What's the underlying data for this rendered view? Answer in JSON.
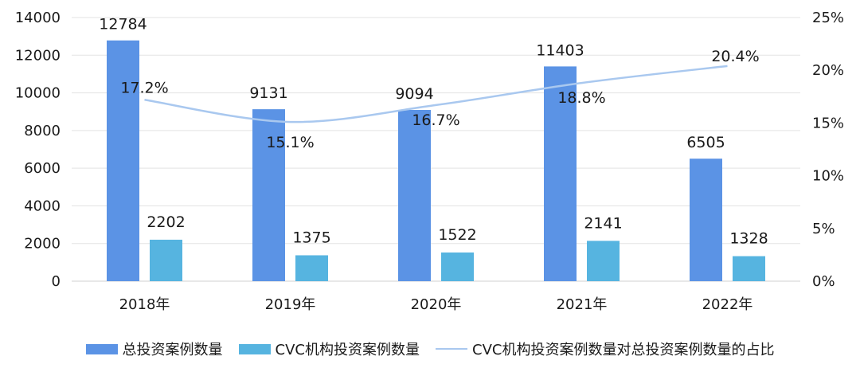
{
  "chart_data": {
    "type": "bar",
    "categories": [
      "2018年",
      "2019年",
      "2020年",
      "2021年",
      "2022年"
    ],
    "series": [
      {
        "name": "总投资案例数量",
        "type": "bar",
        "axis": "left",
        "color": "#5B93E5",
        "values": [
          12784,
          9131,
          9094,
          11403,
          6505
        ]
      },
      {
        "name": "CVC机构投资案例数量",
        "type": "bar",
        "axis": "left",
        "color": "#56B4E0",
        "values": [
          2202,
          1375,
          1522,
          2141,
          1328
        ]
      },
      {
        "name": "CVC机构投资案例数量对总投资案例数量的占比",
        "type": "line",
        "axis": "right",
        "color": "#A9C8EF",
        "values": [
          17.2,
          15.1,
          16.7,
          18.8,
          20.4
        ],
        "labels": [
          "17.2%",
          "15.1%",
          "16.7%",
          "18.8%",
          "20.4%"
        ]
      }
    ],
    "y_left": {
      "min": 0,
      "max": 14000,
      "ticks": [
        "0",
        "2000",
        "4000",
        "6000",
        "8000",
        "10000",
        "12000",
        "14000"
      ]
    },
    "y_right": {
      "min": 0,
      "max": 25,
      "ticks": [
        "0%",
        "5%",
        "10%",
        "15%",
        "20%",
        "25%"
      ]
    },
    "grid": true,
    "legend_position": "bottom"
  }
}
